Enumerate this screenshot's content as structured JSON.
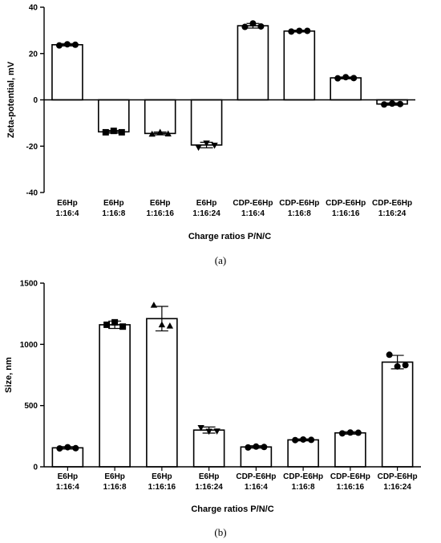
{
  "chart_data": [
    {
      "type": "bar",
      "panel_label": "(a)",
      "ylabel": "Zeta-potential, mV",
      "xlabel": "Charge ratios P/N/C",
      "ylim": [
        -40,
        40
      ],
      "yticks": [
        -40,
        -20,
        0,
        20,
        40
      ],
      "grid": false,
      "categories": [
        [
          "E6Hp",
          "1:16:4"
        ],
        [
          "E6Hp",
          "1:16:8"
        ],
        [
          "E6Hp",
          "1:16:16"
        ],
        [
          "E6Hp",
          "1:16:24"
        ],
        [
          "CDP-E6Hp",
          "1:16:4"
        ],
        [
          "CDP-E6Hp",
          "1:16:8"
        ],
        [
          "CDP-E6Hp",
          "1:16:16"
        ],
        [
          "CDP-E6Hp",
          "1:16:24"
        ]
      ],
      "markers": [
        "circle",
        "square",
        "triangle-up",
        "triangle-down",
        "circle",
        "circle",
        "circle",
        "circle"
      ],
      "values": [
        23.8,
        -13.8,
        -14.5,
        -19.5,
        32.0,
        29.7,
        9.5,
        -1.8
      ],
      "errors": [
        0.5,
        0.6,
        0.6,
        1.2,
        1.0,
        0.4,
        0.4,
        0.5
      ],
      "points": [
        [
          23.5,
          24.0,
          23.8
        ],
        [
          -14.0,
          -13.4,
          -14.0
        ],
        [
          -14.8,
          -14.0,
          -14.7
        ],
        [
          -20.5,
          -18.7,
          -19.6
        ],
        [
          31.5,
          33.0,
          31.7
        ],
        [
          29.5,
          29.8,
          29.8
        ],
        [
          9.3,
          9.8,
          9.4
        ],
        [
          -2.0,
          -1.6,
          -1.8
        ]
      ]
    },
    {
      "type": "bar",
      "panel_label": "(b)",
      "ylabel": "Size, nm",
      "xlabel": "Charge ratios P/N/C",
      "ylim": [
        0,
        1500
      ],
      "yticks": [
        0,
        500,
        1000,
        1500
      ],
      "grid": false,
      "categories": [
        [
          "E6Hp",
          "1:16:4"
        ],
        [
          "E6Hp",
          "1:16:8"
        ],
        [
          "E6Hp",
          "1:16:16"
        ],
        [
          "E6Hp",
          "1:16:24"
        ],
        [
          "CDP-E6Hp",
          "1:16:4"
        ],
        [
          "CDP-E6Hp",
          "1:16:8"
        ],
        [
          "CDP-E6Hp",
          "1:16:16"
        ],
        [
          "CDP-E6Hp",
          "1:16:24"
        ]
      ],
      "markers": [
        "circle",
        "square",
        "triangle-up",
        "triangle-down",
        "circle",
        "circle",
        "circle",
        "circle"
      ],
      "values": [
        155,
        1160,
        1210,
        300,
        162,
        220,
        277,
        855
      ],
      "errors": [
        10,
        30,
        100,
        25,
        10,
        8,
        10,
        55
      ],
      "points": [
        [
          150,
          160,
          152
        ],
        [
          1160,
          1180,
          1145
        ],
        [
          1320,
          1160,
          1150
        ],
        [
          320,
          290,
          292
        ],
        [
          158,
          165,
          162
        ],
        [
          218,
          223,
          220
        ],
        [
          273,
          280,
          278
        ],
        [
          915,
          820,
          830
        ]
      ]
    }
  ]
}
